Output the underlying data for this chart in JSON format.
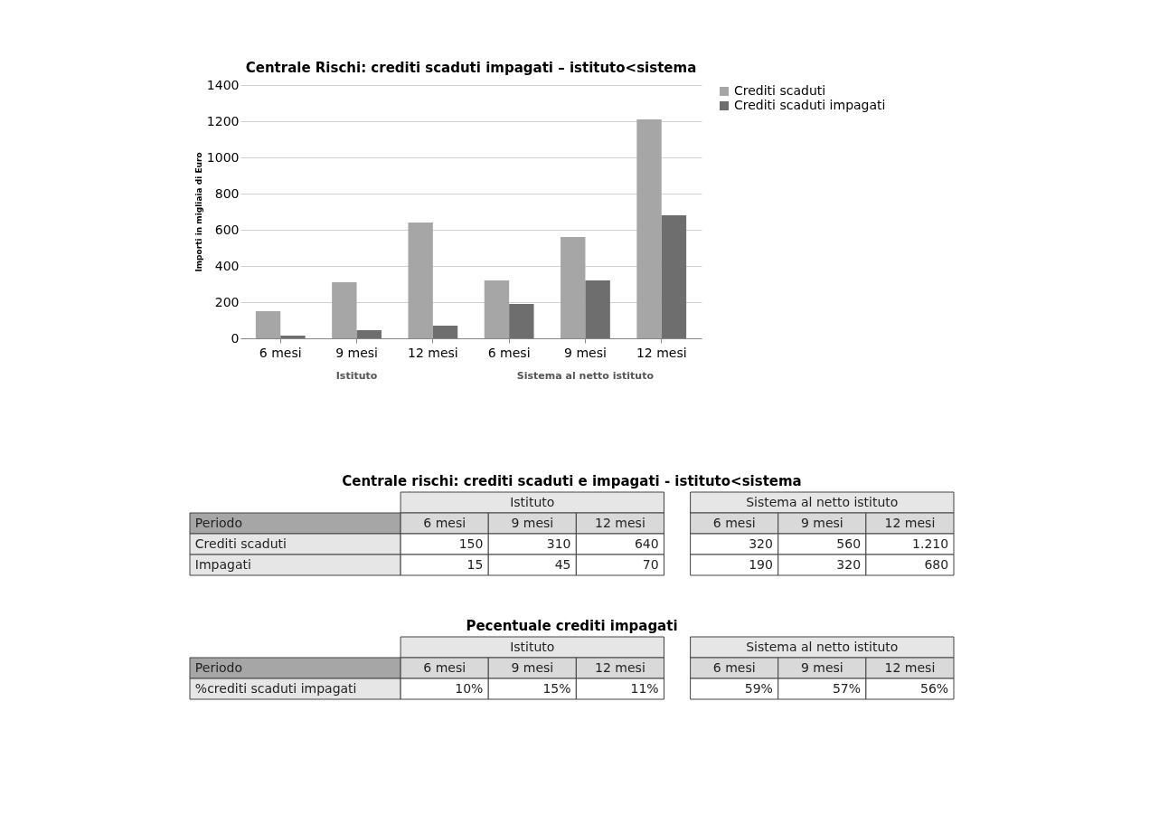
{
  "chart_data": [
    {
      "type": "bar",
      "title": "Centrale Rischi: crediti scaduti impagati – istituto<sistema",
      "ylabel": "Importi in migliaia di Euro",
      "categories": [
        "6 mesi",
        "9 mesi",
        "12 mesi",
        "6 mesi",
        "9 mesi",
        "12 mesi"
      ],
      "ylim": [
        0,
        1400
      ],
      "yticks": [
        0,
        200,
        400,
        600,
        800,
        1000,
        1200,
        1400
      ],
      "grid": "y",
      "legend": "right",
      "annotations": [
        "Istituto",
        "Sistema al netto istituto"
      ],
      "series": [
        {
          "name": "Crediti scaduti",
          "color": "#a6a6a6",
          "values": [
            150,
            310,
            640,
            320,
            560,
            1210
          ]
        },
        {
          "name": "Crediti scaduti impagati",
          "color": "#6e6e6e",
          "values": [
            15,
            45,
            70,
            190,
            320,
            680
          ]
        }
      ]
    },
    {
      "type": "other",
      "title": "Centrale rischi: crediti scaduti e impagati - istituto<sistema",
      "categories": [
        "6 mesi",
        "9 mesi",
        "12 mesi",
        "6 mesi",
        "9 mesi",
        "12 mesi"
      ],
      "annotations": [
        "Istituto",
        "Sistema al netto istituto",
        "Periodo"
      ],
      "series": [
        {
          "name": "Crediti scaduti",
          "values": [
            150,
            310,
            640,
            320,
            560,
            1210
          ],
          "value_labels": [
            "150",
            "310",
            "640",
            "320",
            "560",
            "1.210"
          ]
        },
        {
          "name": "Impagati",
          "values": [
            15,
            45,
            70,
            190,
            320,
            680
          ],
          "value_labels": [
            "15",
            "45",
            "70",
            "190",
            "320",
            "680"
          ]
        }
      ]
    },
    {
      "type": "other",
      "title": "Pecentuale crediti impagati",
      "categories": [
        "6 mesi",
        "9 mesi",
        "12 mesi",
        "6 mesi",
        "9 mesi",
        "12 mesi"
      ],
      "annotations": [
        "Istituto",
        "Sistema al netto istituto",
        "Periodo"
      ],
      "series": [
        {
          "name": "%crediti scaduti impagati",
          "values": [
            10,
            15,
            11,
            59,
            57,
            56
          ],
          "value_labels": [
            "10%",
            "15%",
            "11%",
            "59%",
            "57%",
            "56%"
          ]
        }
      ]
    }
  ]
}
